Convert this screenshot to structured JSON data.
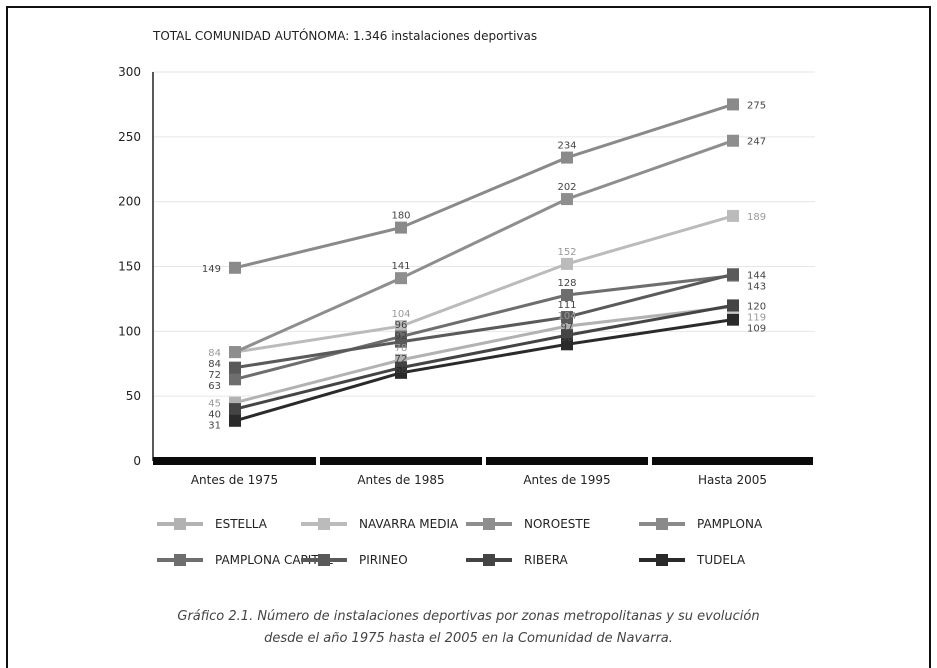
{
  "chart_data": {
    "type": "line",
    "title": "TOTAL COMUNIDAD AUTÓNOMA: 1.346 instalaciones deportivas",
    "categories": [
      "Antes de 1975",
      "Antes de 1985",
      "Antes de 1995",
      "Hasta 2005"
    ],
    "ylim": [
      0,
      300
    ],
    "yticks": [
      0,
      50,
      100,
      150,
      200,
      250,
      300
    ],
    "grid": true,
    "legend_position": "bottom",
    "series": [
      {
        "name": "ESTELLA",
        "color": "#b2b2b2",
        "values": [
          45,
          78,
          104,
          119
        ]
      },
      {
        "name": "NAVARRA MEDIA",
        "color": "#bbbbbb",
        "values": [
          84,
          104,
          152,
          189
        ]
      },
      {
        "name": "NOROESTE",
        "color": "#8e8e8e",
        "values": [
          84,
          141,
          202,
          247
        ]
      },
      {
        "name": "PAMPLONA",
        "color": "#8a8a8a",
        "values": [
          149,
          180,
          234,
          275
        ]
      },
      {
        "name": "PAMPLONA CAPITAL",
        "color": "#6e6e6e",
        "values": [
          63,
          96,
          128,
          143
        ]
      },
      {
        "name": "PIRINEO",
        "color": "#5a5a5a",
        "values": [
          72,
          92,
          111,
          144
        ]
      },
      {
        "name": "RIBERA",
        "color": "#444444",
        "values": [
          40,
          72,
          97,
          120
        ]
      },
      {
        "name": "TUDELA",
        "color": "#2a2a2a",
        "values": [
          31,
          68,
          90,
          109
        ]
      }
    ]
  },
  "caption": {
    "line1": "Gráfico 2.1. Número de instalaciones deportivas por zonas metropolitanas y su evolución",
    "line2": "desde el año 1975 hasta el 2005 en la Comunidad de Navarra."
  }
}
